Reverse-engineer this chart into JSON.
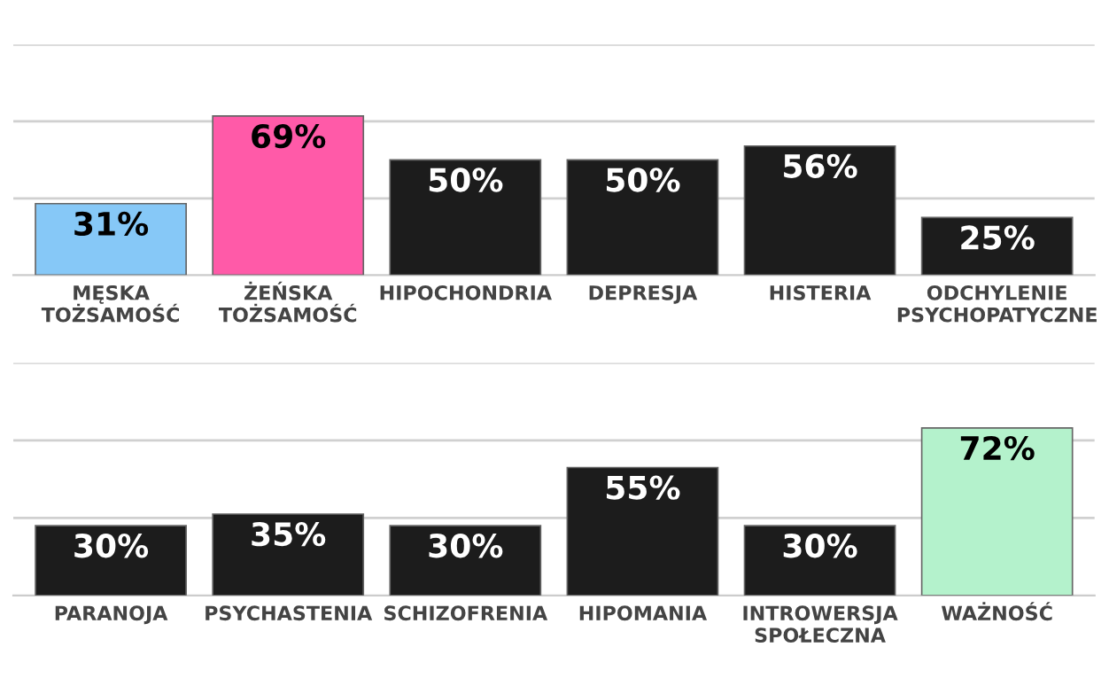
{
  "chart_data": [
    {
      "type": "bar",
      "categories": [
        "MĘSKA\nTOŻSAMOŚĆ",
        "ŻEŃSKA\nTOŻSAMOŚĆ",
        "HIPOCHONDRIA",
        "DEPRESJA",
        "HISTERIA",
        "ODCHYLENIE\nPSYCHOPATYCZNE"
      ],
      "values": [
        31,
        69,
        50,
        50,
        56,
        25
      ],
      "value_labels": [
        "31%",
        "69%",
        "50%",
        "50%",
        "56%",
        "25%"
      ],
      "colors": [
        "#86c8f7",
        "#ff5aa8",
        "#1c1c1c",
        "#1c1c1c",
        "#1c1c1c",
        "#1c1c1c"
      ],
      "ylim": [
        0,
        100
      ],
      "ref_lines": [
        {
          "axis": "y",
          "value": 33.3,
          "color": "#d0d0d0"
        },
        {
          "axis": "y",
          "value": 66.7,
          "color": "#d0d0d0"
        },
        {
          "axis": "y",
          "value": 100,
          "color": "#d0d0d0"
        }
      ],
      "tick_labels": "x"
    },
    {
      "type": "bar",
      "categories": [
        "PARANOJA",
        "PSYCHASTENIA",
        "SCHIZOFRENIA",
        "HIPOMANIA",
        "INTROWERSJA\nSPOŁECZNA",
        "WAŻNOŚĆ"
      ],
      "values": [
        30,
        35,
        30,
        55,
        30,
        72
      ],
      "value_labels": [
        "30%",
        "35%",
        "30%",
        "55%",
        "30%",
        "72%"
      ],
      "colors": [
        "#1c1c1c",
        "#1c1c1c",
        "#1c1c1c",
        "#1c1c1c",
        "#1c1c1c",
        "#b4f2cc"
      ],
      "ylim": [
        0,
        100
      ],
      "ref_lines": [
        {
          "axis": "y",
          "value": 33.3,
          "color": "#d0d0d0"
        },
        {
          "axis": "y",
          "value": 66.7,
          "color": "#d0d0d0"
        },
        {
          "axis": "y",
          "value": 100,
          "color": "#d0d0d0"
        }
      ],
      "tick_labels": "x"
    }
  ]
}
